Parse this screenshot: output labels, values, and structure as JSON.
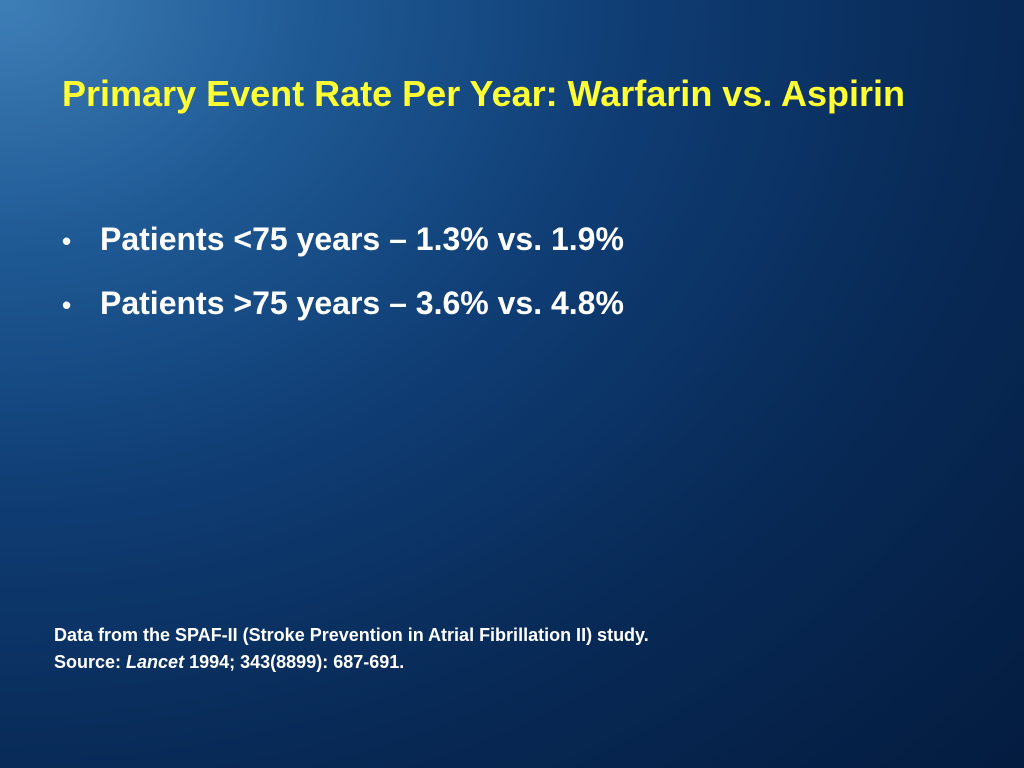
{
  "slide": {
    "title": "Primary Event Rate Per Year: Warfarin vs. Aspirin",
    "bullet_marker": "•",
    "bullets": [
      {
        "text": "Patients <75 years – 1.3% vs. 1.9%"
      },
      {
        "text": "Patients >75 years – 3.6% vs. 4.8%"
      }
    ],
    "footnote": {
      "line1": "Data from the SPAF-II (Stroke Prevention in Atrial Fibrillation II) study.",
      "source_label": "Source:",
      "journal": "Lancet",
      "citation": "1994; 343(8899): 687-691."
    },
    "colors": {
      "title": "#ffff33",
      "text": "#ffffff",
      "background_light": "#3f7fb8",
      "background_dark": "#041c40"
    }
  }
}
